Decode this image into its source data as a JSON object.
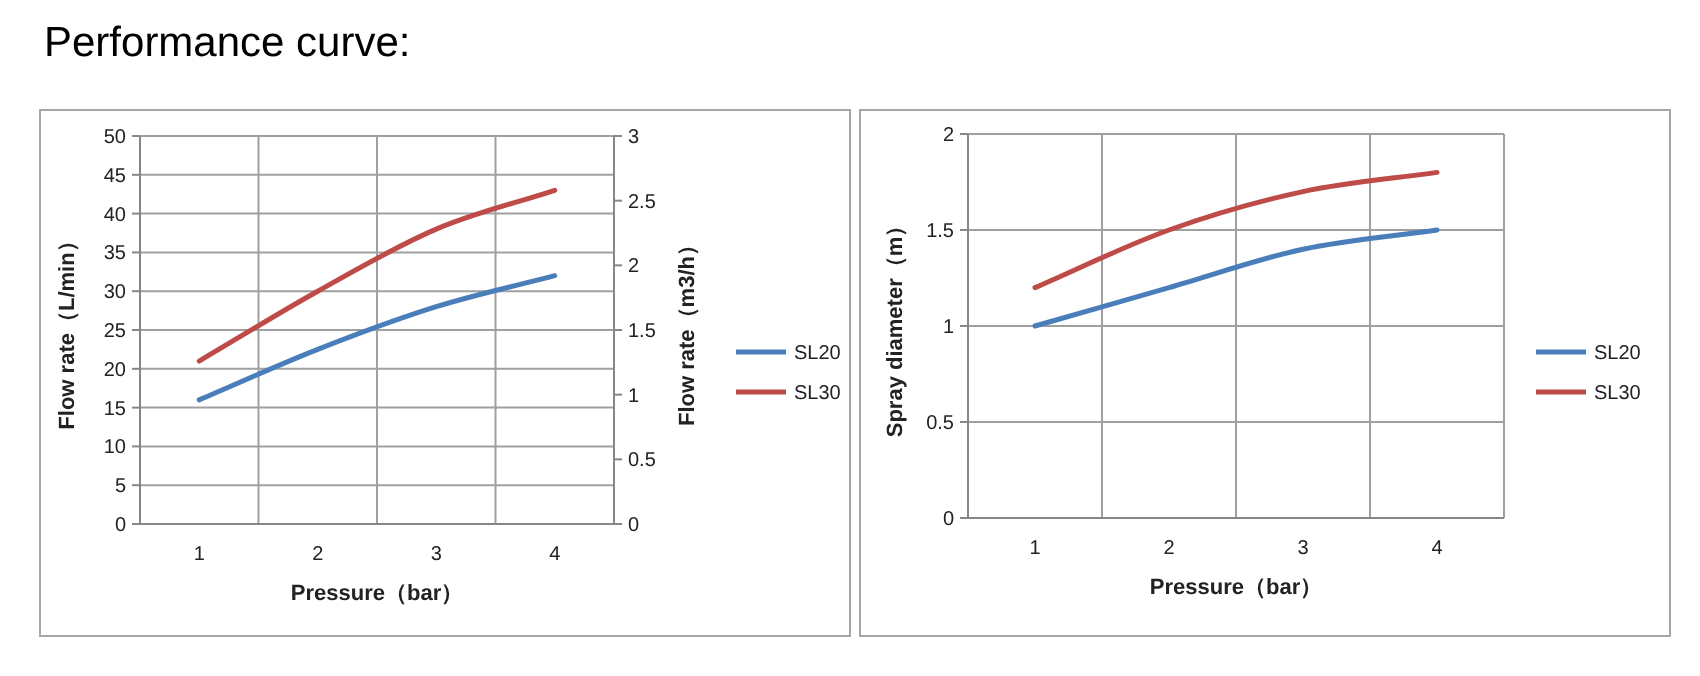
{
  "chart_data": [
    {
      "type": "line",
      "title": "Performance curve:",
      "xlabel": "Pressure（bar）",
      "ylabel": "Flow rate（L/min）",
      "y2label": "Flow rate（m3/h）",
      "categories": [
        "1",
        "2",
        "3",
        "4"
      ],
      "series": [
        {
          "name": "SL20",
          "color": "#4a7ebb",
          "values": [
            16,
            22.5,
            28,
            32
          ]
        },
        {
          "name": "SL30",
          "color": "#be4b48",
          "values": [
            21,
            30,
            38,
            43
          ]
        }
      ],
      "ylim": [
        0,
        50
      ],
      "yticks": [
        0,
        5,
        10,
        15,
        20,
        25,
        30,
        35,
        40,
        45,
        50
      ],
      "y2lim": [
        0,
        3
      ],
      "y2ticks": [
        0,
        0.5,
        1,
        1.5,
        2,
        2.5,
        3
      ],
      "grid": true,
      "legend": "right"
    },
    {
      "type": "line",
      "xlabel": "Pressure（bar）",
      "ylabel": "Spray diameter（m）",
      "categories": [
        "1",
        "2",
        "3",
        "4"
      ],
      "series": [
        {
          "name": "SL20",
          "color": "#4a7ebb",
          "values": [
            1,
            1.2,
            1.4,
            1.5
          ]
        },
        {
          "name": "SL30",
          "color": "#be4b48",
          "values": [
            1.2,
            1.5,
            1.7,
            1.8
          ]
        }
      ],
      "ylim": [
        0,
        2
      ],
      "yticks": [
        0,
        0.5,
        1,
        1.5,
        2
      ],
      "grid": true,
      "legend": "right"
    }
  ]
}
